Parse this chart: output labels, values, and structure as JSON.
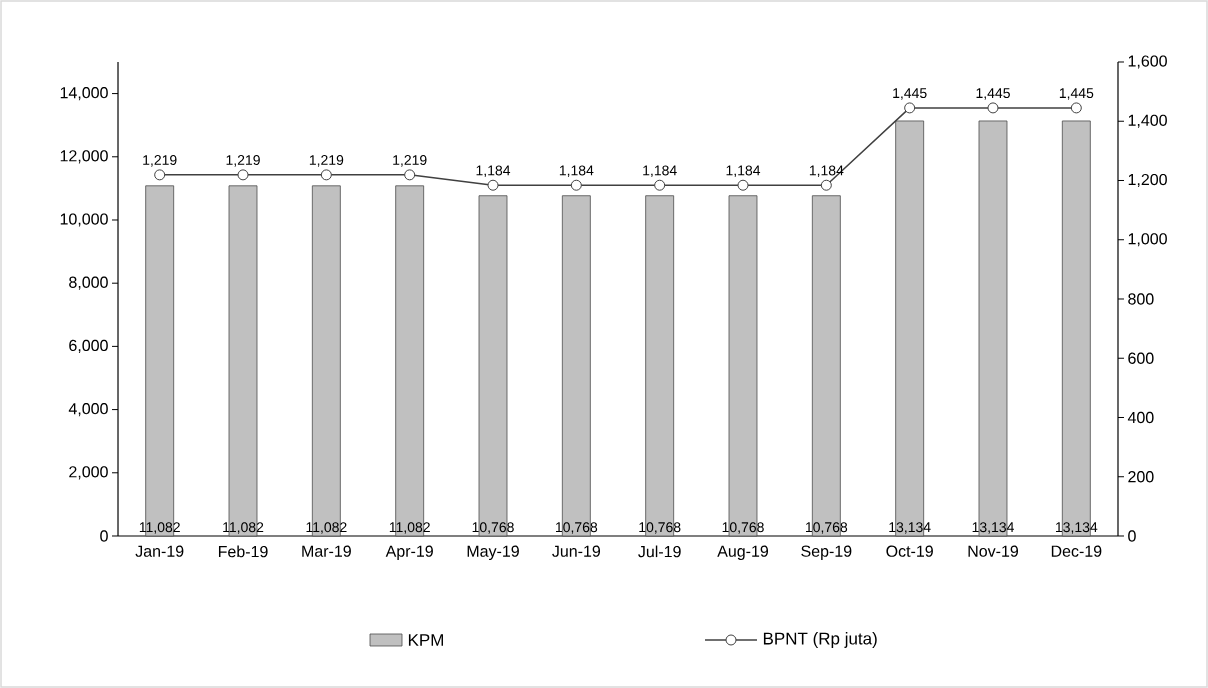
{
  "chart_data": {
    "type": "bar",
    "categories": [
      "Jan-19",
      "Feb-19",
      "Mar-19",
      "Apr-19",
      "May-19",
      "Jun-19",
      "Jul-19",
      "Aug-19",
      "Sep-19",
      "Oct-19",
      "Nov-19",
      "Dec-19"
    ],
    "series": [
      {
        "name": "KPM",
        "color": "#c0c0c0",
        "values": [
          11082,
          11082,
          11082,
          11082,
          10768,
          10768,
          10768,
          10768,
          10768,
          13134,
          13134,
          13134
        ],
        "value_labels": [
          "11,082",
          "11,082",
          "11,082",
          "11,082",
          "10,768",
          "10,768",
          "10,768",
          "10,768",
          "10,768",
          "13,134",
          "13,134",
          "13,134"
        ]
      },
      {
        "name": "BPNT (Rp juta)",
        "type": "line",
        "axis": "y2",
        "color": "#404040",
        "marker": "circle",
        "values": [
          1219,
          1219,
          1219,
          1219,
          1184,
          1184,
          1184,
          1184,
          1184,
          1445,
          1445,
          1445
        ],
        "value_labels": [
          "1,219",
          "1,219",
          "1,219",
          "1,219",
          "1,184",
          "1,184",
          "1,184",
          "1,184",
          "1,184",
          "1,445",
          "1,445",
          "1,445"
        ]
      }
    ],
    "ylim": [
      0,
      15000
    ],
    "yticks": [
      {
        "value": 0,
        "label": "0"
      },
      {
        "value": 2000,
        "label": "2,000"
      },
      {
        "value": 4000,
        "label": "4,000"
      },
      {
        "value": 6000,
        "label": "6,000"
      },
      {
        "value": 8000,
        "label": "8,000"
      },
      {
        "value": 10000,
        "label": "10,000"
      },
      {
        "value": 12000,
        "label": "12,000"
      },
      {
        "value": 14000,
        "label": "14,000"
      }
    ],
    "y2lim": [
      0,
      1600
    ],
    "y2ticks": [
      {
        "value": 0,
        "label": "0"
      },
      {
        "value": 200,
        "label": "200"
      },
      {
        "value": 400,
        "label": "400"
      },
      {
        "value": 600,
        "label": "600"
      },
      {
        "value": 800,
        "label": "800"
      },
      {
        "value": 1000,
        "label": "1,000"
      },
      {
        "value": 1200,
        "label": "1,200"
      },
      {
        "value": 1400,
        "label": "1,400"
      },
      {
        "value": 1600,
        "label": "1,600"
      }
    ],
    "legend": "bottom"
  }
}
